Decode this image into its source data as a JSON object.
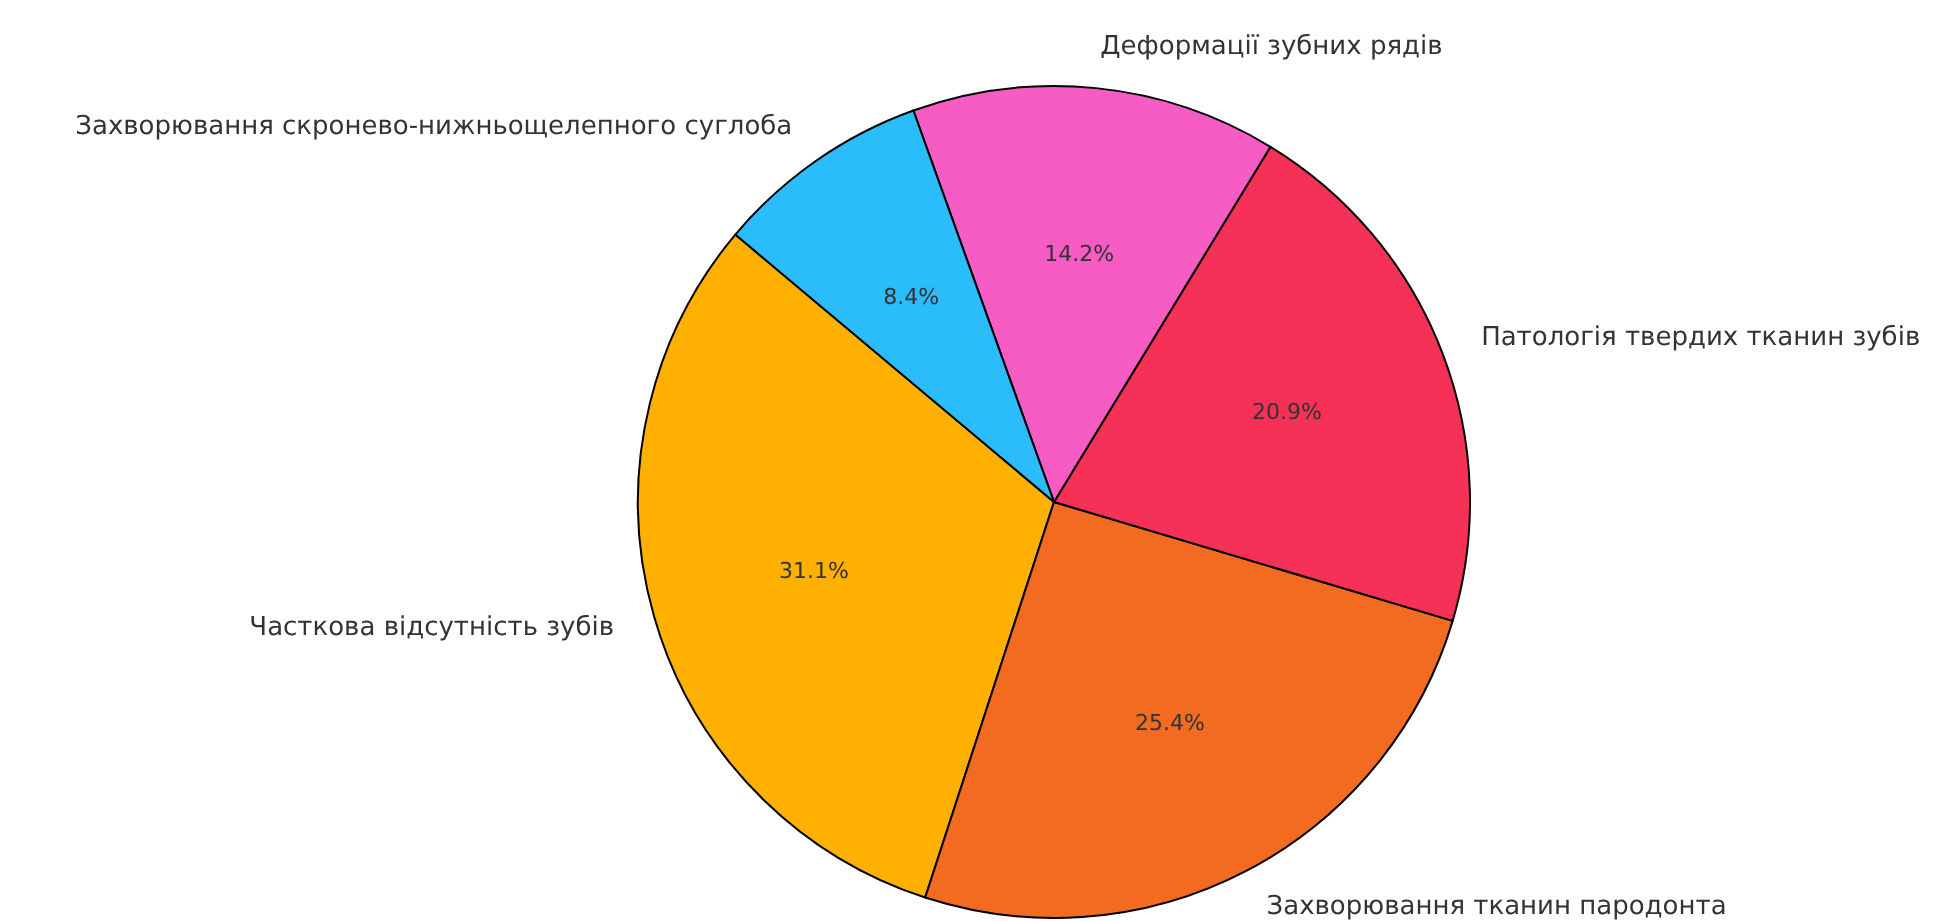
{
  "chart_data": {
    "type": "pie",
    "categories": [
      "Часткова відсутність зубів",
      "Захворювання тканин пародонта",
      "Патологія твердих тканин зубів",
      "Деформації зубних рядів",
      "Захворювання скронево-нижньощелепного суглоба"
    ],
    "values": [
      31.1,
      25.4,
      20.9,
      14.2,
      8.4
    ],
    "value_labels": [
      "31.1%",
      "25.4%",
      "20.9%",
      "14.2%",
      "8.4%"
    ],
    "colors": [
      "#ffb000",
      "#f26b21",
      "#f53158",
      "#f75bc4",
      "#2bbcfb"
    ]
  }
}
